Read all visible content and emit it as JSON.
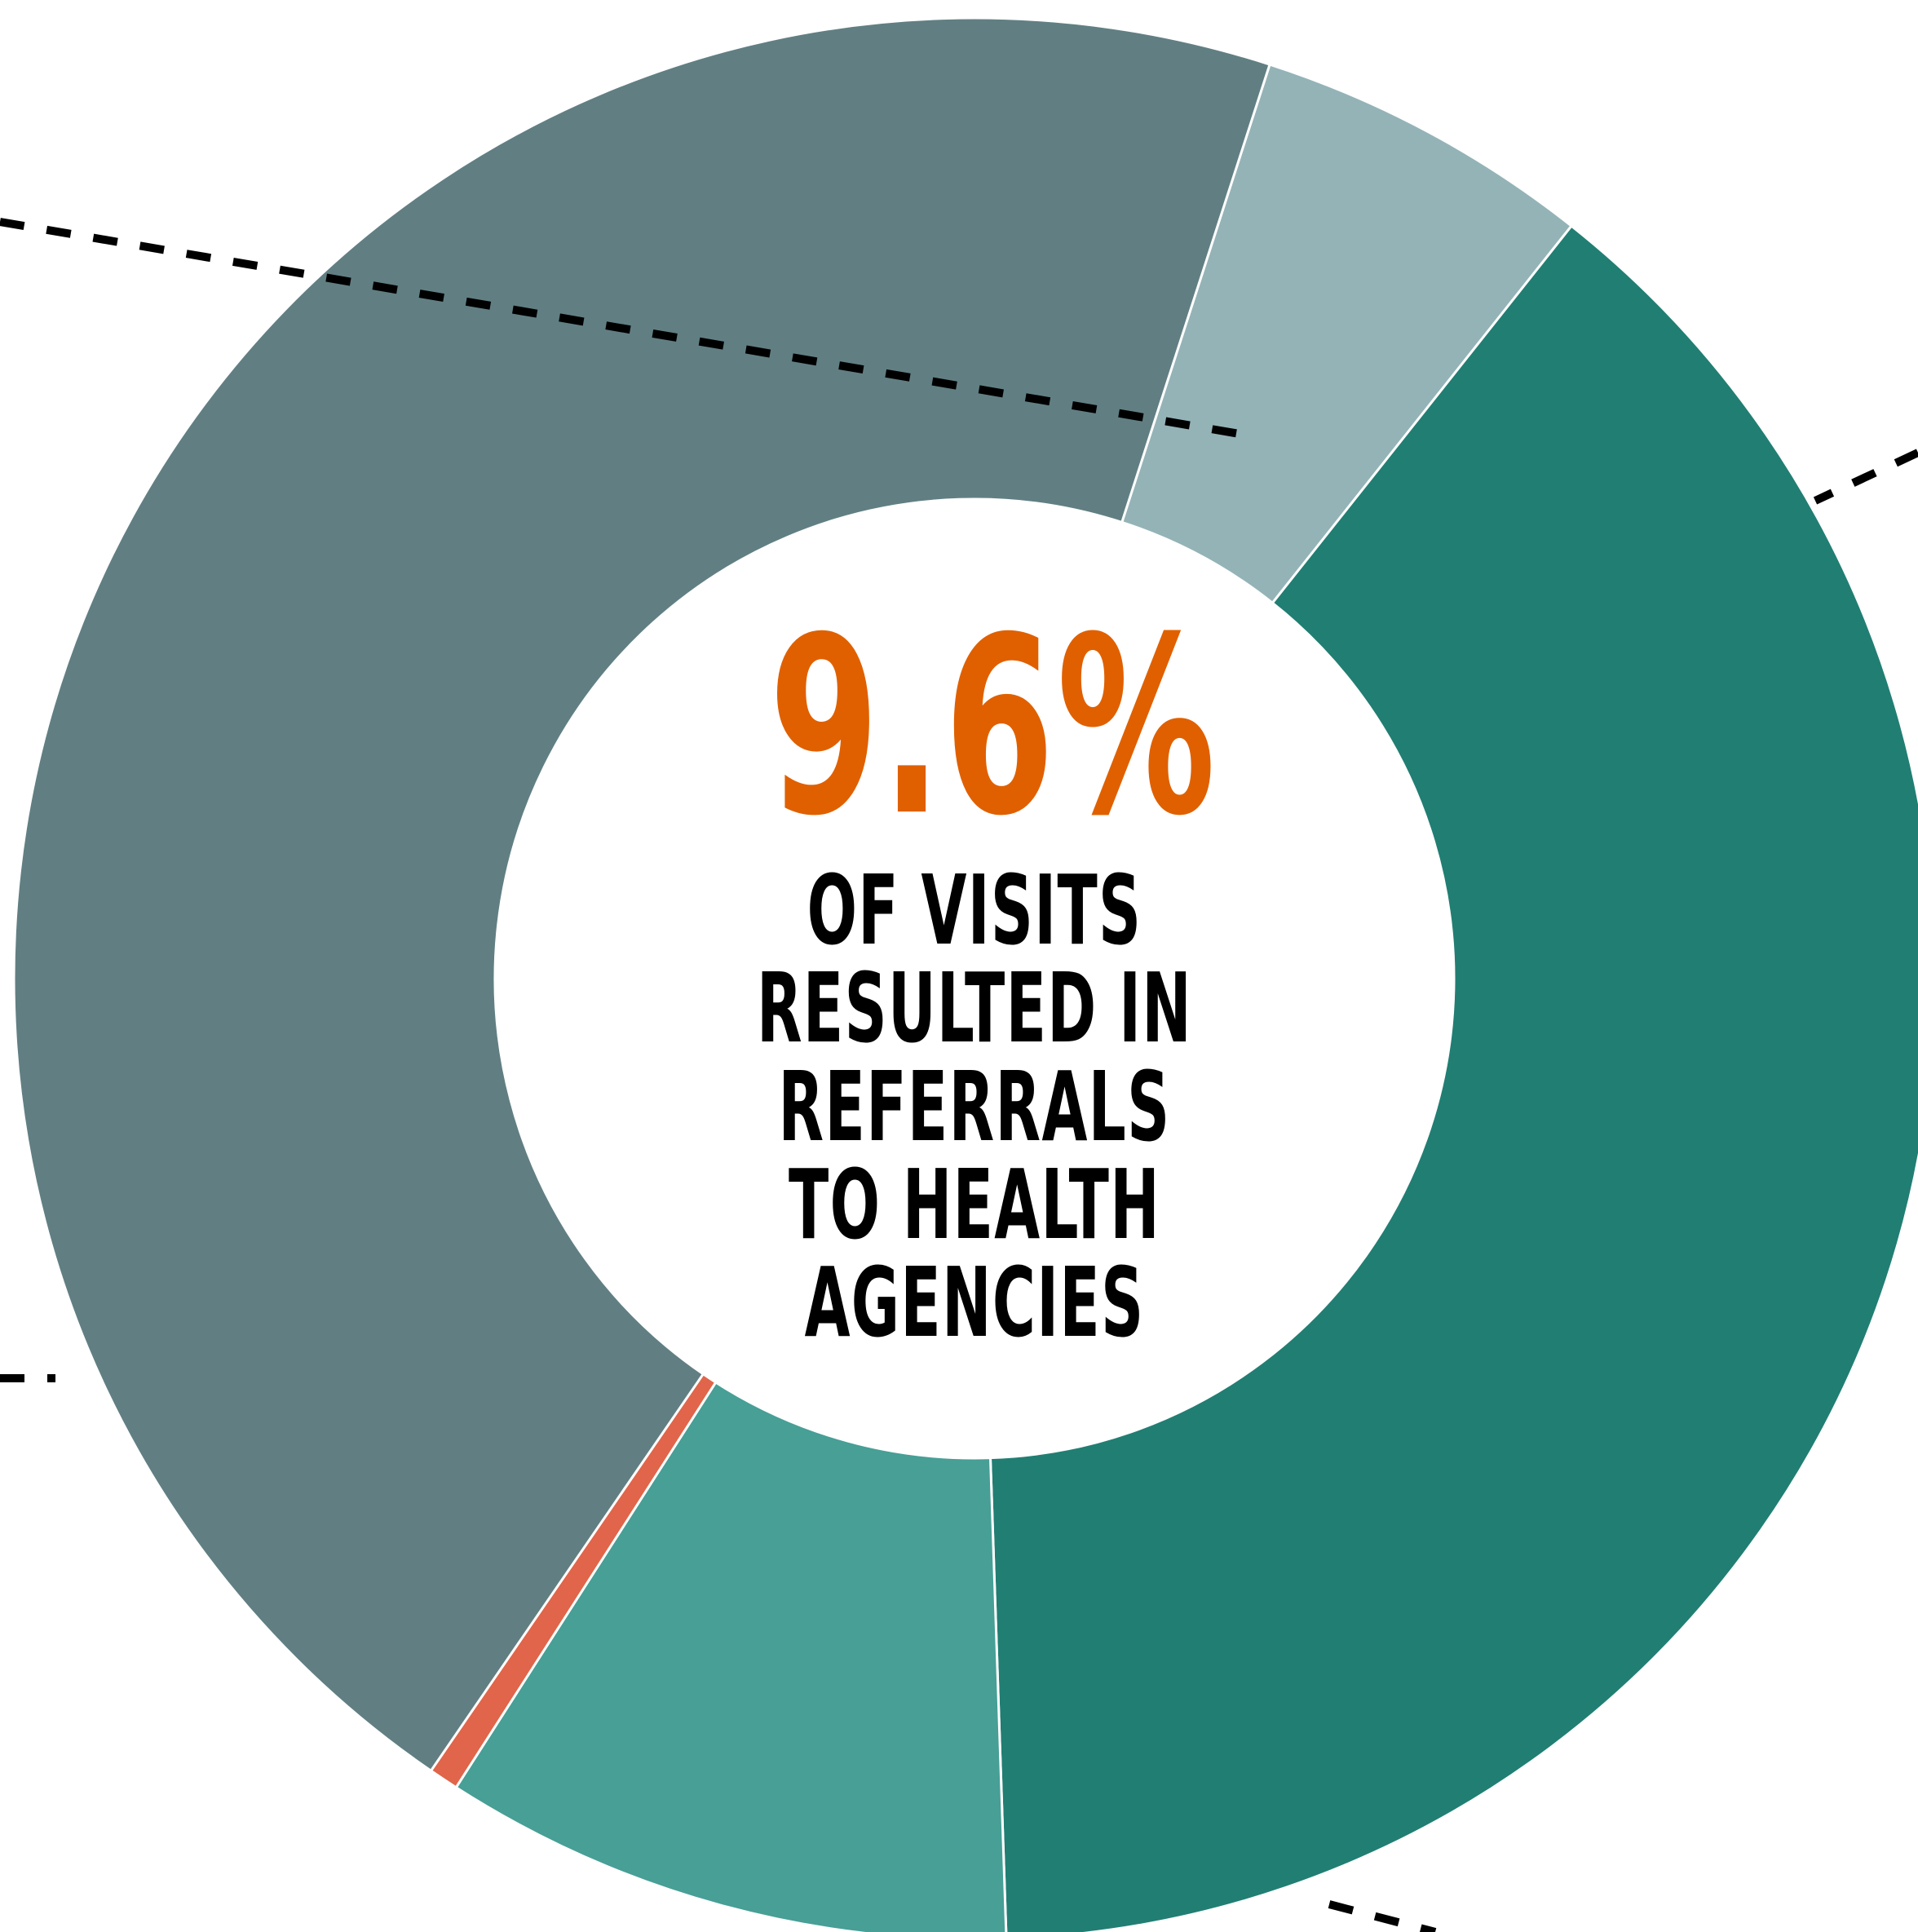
{
  "chart_data": {
    "type": "pie",
    "subtype": "donut",
    "title": "",
    "slices": [
      {
        "value": 5.7,
        "color": "#94b3b7"
      },
      {
        "value": 38.8,
        "color": "#217e73"
      },
      {
        "value": 9.6,
        "color": "#479f96"
      },
      {
        "value": 0.5,
        "color": "#e0654a"
      },
      {
        "value": 45.4,
        "color": "#617f83"
      }
    ],
    "start_angle_deg": 17.9,
    "leader_lines": true
  },
  "center": {
    "headline": "9.6%",
    "subtext": "OF VISITS RESULTED IN REFERRALS TO HEALTH AGENCIES"
  },
  "colors": {
    "headline": "#e06000",
    "subtext": "#000000",
    "leader_line": "#000000"
  }
}
